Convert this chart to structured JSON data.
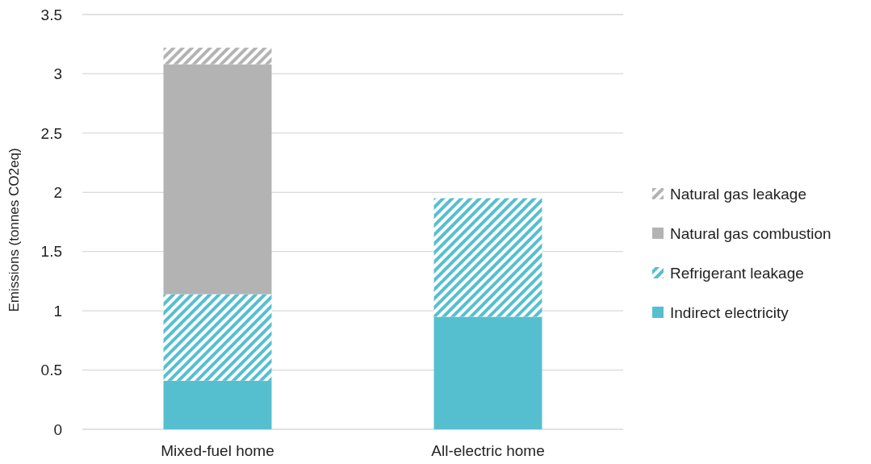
{
  "chart_data": {
    "type": "bar",
    "stacked": true,
    "ylabel": "Emissions (tonnes CO2eq)",
    "categories": [
      "Mixed-fuel home",
      "All-electric home"
    ],
    "series": [
      {
        "name": "Indirect electricity",
        "color": "#56bfcf",
        "values": [
          0.41,
          0.95
        ]
      },
      {
        "name": "Refrigerant leakage",
        "color": "#56bfcf",
        "values": [
          0.73,
          1.0
        ]
      },
      {
        "name": "Natural gas combustion",
        "color": "#b3b3b3",
        "values": [
          1.94,
          null
        ]
      },
      {
        "name": "Natural gas leakage",
        "color": "#b3b3b3",
        "values": [
          0.14,
          null
        ]
      }
    ],
    "ylim": [
      0,
      3.5
    ],
    "yticks": [
      0,
      0.5,
      1,
      1.5,
      2,
      2.5,
      3,
      3.5
    ],
    "grid": "y",
    "legend": "right"
  }
}
